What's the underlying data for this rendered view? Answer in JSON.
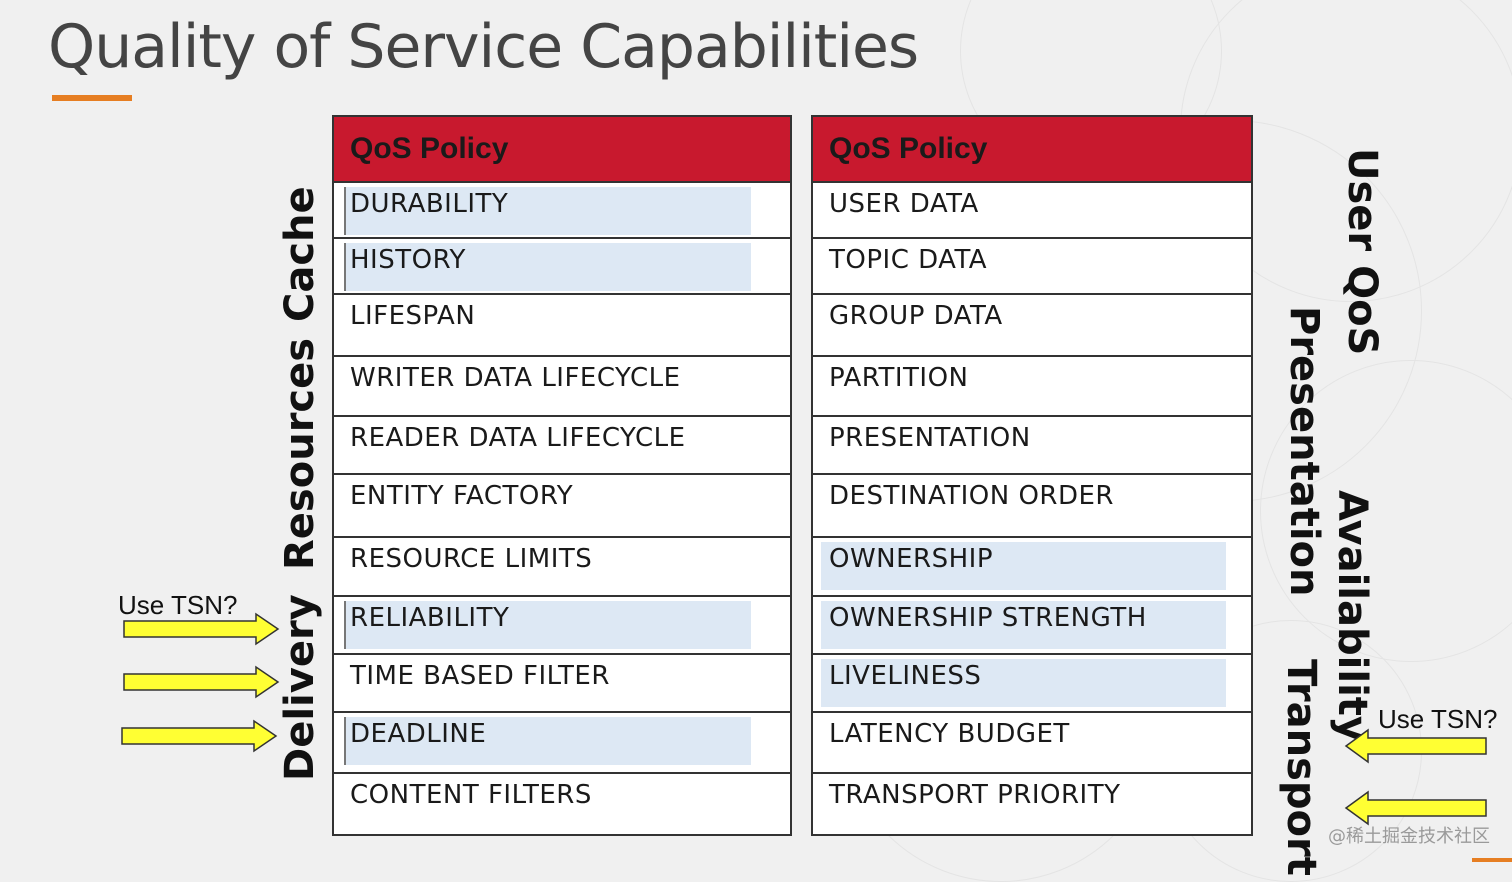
{
  "title": "Quality of Service Capabilities",
  "colors": {
    "header_red": "#c8192e",
    "accent_orange": "#e67e22",
    "highlight_blue": "#dde8f4",
    "arrow_yellow": "#ffff33"
  },
  "left_table": {
    "header": "QoS Policy",
    "rows": [
      {
        "label": "DURABILITY",
        "highlighted": true
      },
      {
        "label": "HISTORY",
        "highlighted": true
      },
      {
        "label": "LIFESPAN",
        "highlighted": false
      },
      {
        "label": "WRITER DATA LIFECYCLE",
        "highlighted": false
      },
      {
        "label": "READER DATA LIFECYCLE",
        "highlighted": false
      },
      {
        "label": "ENTITY FACTORY",
        "highlighted": false
      },
      {
        "label": "RESOURCE LIMITS",
        "highlighted": false
      },
      {
        "label": "RELIABILITY",
        "highlighted": true
      },
      {
        "label": "TIME BASED FILTER",
        "highlighted": false
      },
      {
        "label": "DEADLINE",
        "highlighted": true
      },
      {
        "label": "CONTENT FILTERS",
        "highlighted": false
      }
    ]
  },
  "right_table": {
    "header": "QoS Policy",
    "rows": [
      {
        "label": "USER DATA",
        "highlighted": false
      },
      {
        "label": "TOPIC DATA",
        "highlighted": false
      },
      {
        "label": "GROUP DATA",
        "highlighted": false
      },
      {
        "label": "PARTITION",
        "highlighted": false
      },
      {
        "label": "PRESENTATION",
        "highlighted": false
      },
      {
        "label": "DESTINATION ORDER",
        "highlighted": false
      },
      {
        "label": "OWNERSHIP",
        "highlighted": true
      },
      {
        "label": "OWNERSHIP STRENGTH",
        "highlighted": true
      },
      {
        "label": "LIVELINESS",
        "highlighted": true
      },
      {
        "label": "LATENCY BUDGET",
        "highlighted": false
      },
      {
        "label": "TRANSPORT PRIORITY",
        "highlighted": false
      }
    ]
  },
  "left_categories": {
    "cache": "Cache",
    "resources": "Resources",
    "delivery": "Delivery"
  },
  "right_categories": {
    "user_qos": "User QoS",
    "presentation": "Presentation",
    "availability": "Availability",
    "transport": "Transport"
  },
  "notes": {
    "left": "Use TSN?",
    "right": "Use TSN?"
  },
  "watermark": "@稀土掘金技术社区"
}
